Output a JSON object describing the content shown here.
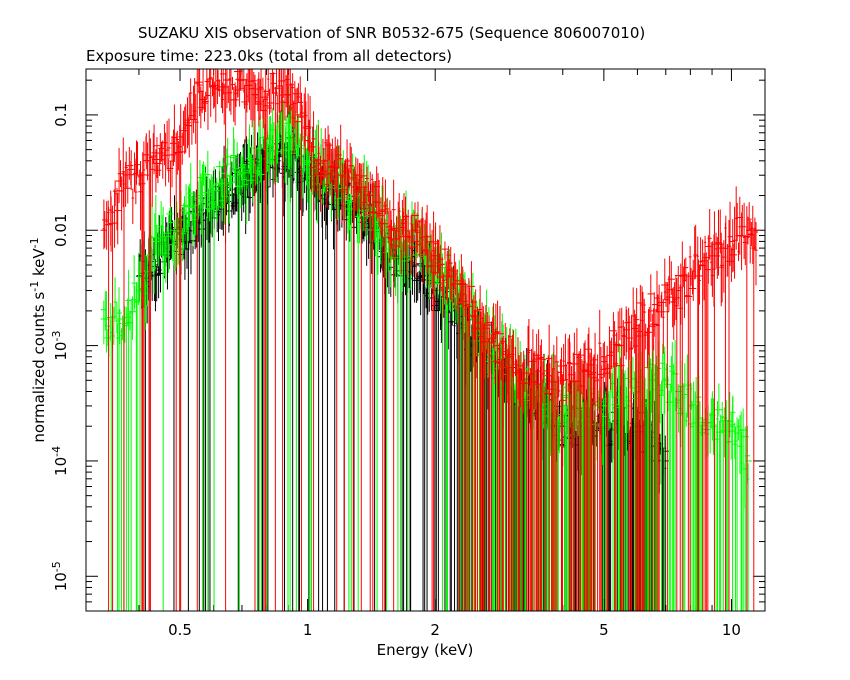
{
  "chart_data": {
    "type": "scatter",
    "title": "SUZAKU XIS observation of SNR B0532-675 (Sequence 806007010)",
    "subtitle": "Exposure time: 223.0ks (total from all detectors)",
    "xlabel": "Energy (keV)",
    "ylabel": "normalized counts s",
    "ylabel_sup1": "-1",
    "ylabel_mid": " keV",
    "ylabel_sup2": "-1",
    "xscale": "log",
    "yscale": "log",
    "xlim": [
      0.3,
      12.0
    ],
    "ylim": [
      5e-06,
      0.25
    ],
    "x_ticks": [
      {
        "value": 0.5,
        "label": "0.5"
      },
      {
        "value": 1,
        "label": "1"
      },
      {
        "value": 2,
        "label": "2"
      },
      {
        "value": 5,
        "label": "5"
      },
      {
        "value": 10,
        "label": "10"
      }
    ],
    "y_ticks": [
      {
        "value": 0.1,
        "label": "0.1",
        "sup": ""
      },
      {
        "value": 0.01,
        "label": "0.01",
        "sup": ""
      },
      {
        "value": 0.001,
        "label": "10",
        "sup": "-3"
      },
      {
        "value": 0.0001,
        "label": "10",
        "sup": "-4"
      },
      {
        "value": 1e-05,
        "label": "10",
        "sup": "-5"
      }
    ],
    "series": [
      {
        "color": "#ff0000",
        "points": [
          [
            0.33,
            0.01
          ],
          [
            0.36,
            0.022
          ],
          [
            0.4,
            0.03
          ],
          [
            0.44,
            0.038
          ],
          [
            0.48,
            0.045
          ],
          [
            0.52,
            0.09
          ],
          [
            0.56,
            0.16
          ],
          [
            0.6,
            0.18
          ],
          [
            0.65,
            0.2
          ],
          [
            0.7,
            0.17
          ],
          [
            0.75,
            0.15
          ],
          [
            0.8,
            0.16
          ],
          [
            0.85,
            0.17
          ],
          [
            0.9,
            0.15
          ],
          [
            0.95,
            0.1
          ],
          [
            1.0,
            0.06
          ],
          [
            1.05,
            0.04
          ],
          [
            1.1,
            0.04
          ],
          [
            1.2,
            0.03
          ],
          [
            1.3,
            0.03
          ],
          [
            1.4,
            0.02
          ],
          [
            1.5,
            0.015
          ],
          [
            1.6,
            0.01
          ],
          [
            1.8,
            0.01
          ],
          [
            2.0,
            0.006
          ],
          [
            2.2,
            0.004
          ],
          [
            2.5,
            0.002
          ],
          [
            2.8,
            0.001
          ],
          [
            3.0,
            0.0008
          ],
          [
            3.5,
            0.0006
          ],
          [
            4.0,
            0.0005
          ],
          [
            4.5,
            0.0006
          ],
          [
            5.0,
            0.0008
          ],
          [
            5.5,
            0.001
          ],
          [
            6.0,
            0.0015
          ],
          [
            6.5,
            0.002
          ],
          [
            7.0,
            0.0025
          ],
          [
            7.5,
            0.003
          ],
          [
            8.0,
            0.004
          ],
          [
            8.5,
            0.005
          ],
          [
            9.0,
            0.006
          ],
          [
            9.5,
            0.007
          ],
          [
            10.0,
            0.008
          ],
          [
            10.5,
            0.009
          ],
          [
            11.0,
            0.01
          ],
          [
            11.5,
            0.01
          ]
        ]
      },
      {
        "color": "#00ff00",
        "points": [
          [
            0.33,
            0.0017
          ],
          [
            0.36,
            0.0017
          ],
          [
            0.4,
            0.003
          ],
          [
            0.44,
            0.008
          ],
          [
            0.48,
            0.01
          ],
          [
            0.52,
            0.016
          ],
          [
            0.56,
            0.02
          ],
          [
            0.6,
            0.022
          ],
          [
            0.65,
            0.03
          ],
          [
            0.7,
            0.035
          ],
          [
            0.75,
            0.04
          ],
          [
            0.8,
            0.05
          ],
          [
            0.85,
            0.06
          ],
          [
            0.9,
            0.07
          ],
          [
            0.95,
            0.06
          ],
          [
            1.0,
            0.04
          ],
          [
            1.1,
            0.03
          ],
          [
            1.2,
            0.025
          ],
          [
            1.3,
            0.02
          ],
          [
            1.4,
            0.015
          ],
          [
            1.5,
            0.01
          ],
          [
            1.6,
            0.008
          ],
          [
            1.8,
            0.008
          ],
          [
            2.0,
            0.004
          ],
          [
            2.2,
            0.003
          ],
          [
            2.5,
            0.0015
          ],
          [
            2.8,
            0.0009
          ],
          [
            3.0,
            0.0006
          ],
          [
            3.5,
            0.0004
          ],
          [
            4.0,
            0.0003
          ],
          [
            4.5,
            0.0003
          ],
          [
            5.0,
            0.0003
          ],
          [
            5.5,
            0.0004
          ],
          [
            6.0,
            0.0004
          ],
          [
            6.5,
            0.0005
          ],
          [
            7.0,
            0.0005
          ],
          [
            7.5,
            0.0004
          ],
          [
            8.0,
            0.0003
          ],
          [
            9.0,
            0.0002
          ],
          [
            10.0,
            0.0002
          ],
          [
            11.0,
            0.0001
          ]
        ]
      },
      {
        "color": "#000000",
        "points": [
          [
            0.4,
            0.004
          ],
          [
            0.44,
            0.005
          ],
          [
            0.48,
            0.008
          ],
          [
            0.52,
            0.01
          ],
          [
            0.56,
            0.015
          ],
          [
            0.6,
            0.018
          ],
          [
            0.65,
            0.02
          ],
          [
            0.7,
            0.025
          ],
          [
            0.75,
            0.03
          ],
          [
            0.8,
            0.035
          ],
          [
            0.85,
            0.04
          ],
          [
            0.9,
            0.045
          ],
          [
            0.95,
            0.04
          ],
          [
            1.0,
            0.03
          ],
          [
            1.1,
            0.025
          ],
          [
            1.2,
            0.02
          ],
          [
            1.3,
            0.015
          ],
          [
            1.4,
            0.012
          ],
          [
            1.5,
            0.008
          ],
          [
            1.6,
            0.006
          ],
          [
            1.8,
            0.005
          ],
          [
            2.0,
            0.003
          ],
          [
            2.2,
            0.002
          ],
          [
            2.5,
            0.001
          ],
          [
            2.8,
            0.0007
          ],
          [
            3.0,
            0.0005
          ],
          [
            3.5,
            0.0003
          ],
          [
            4.0,
            0.0002
          ],
          [
            4.5,
            0.0002
          ],
          [
            5.0,
            0.0002
          ],
          [
            6.0,
            0.0002
          ],
          [
            7.0,
            0.0001
          ]
        ]
      }
    ]
  }
}
